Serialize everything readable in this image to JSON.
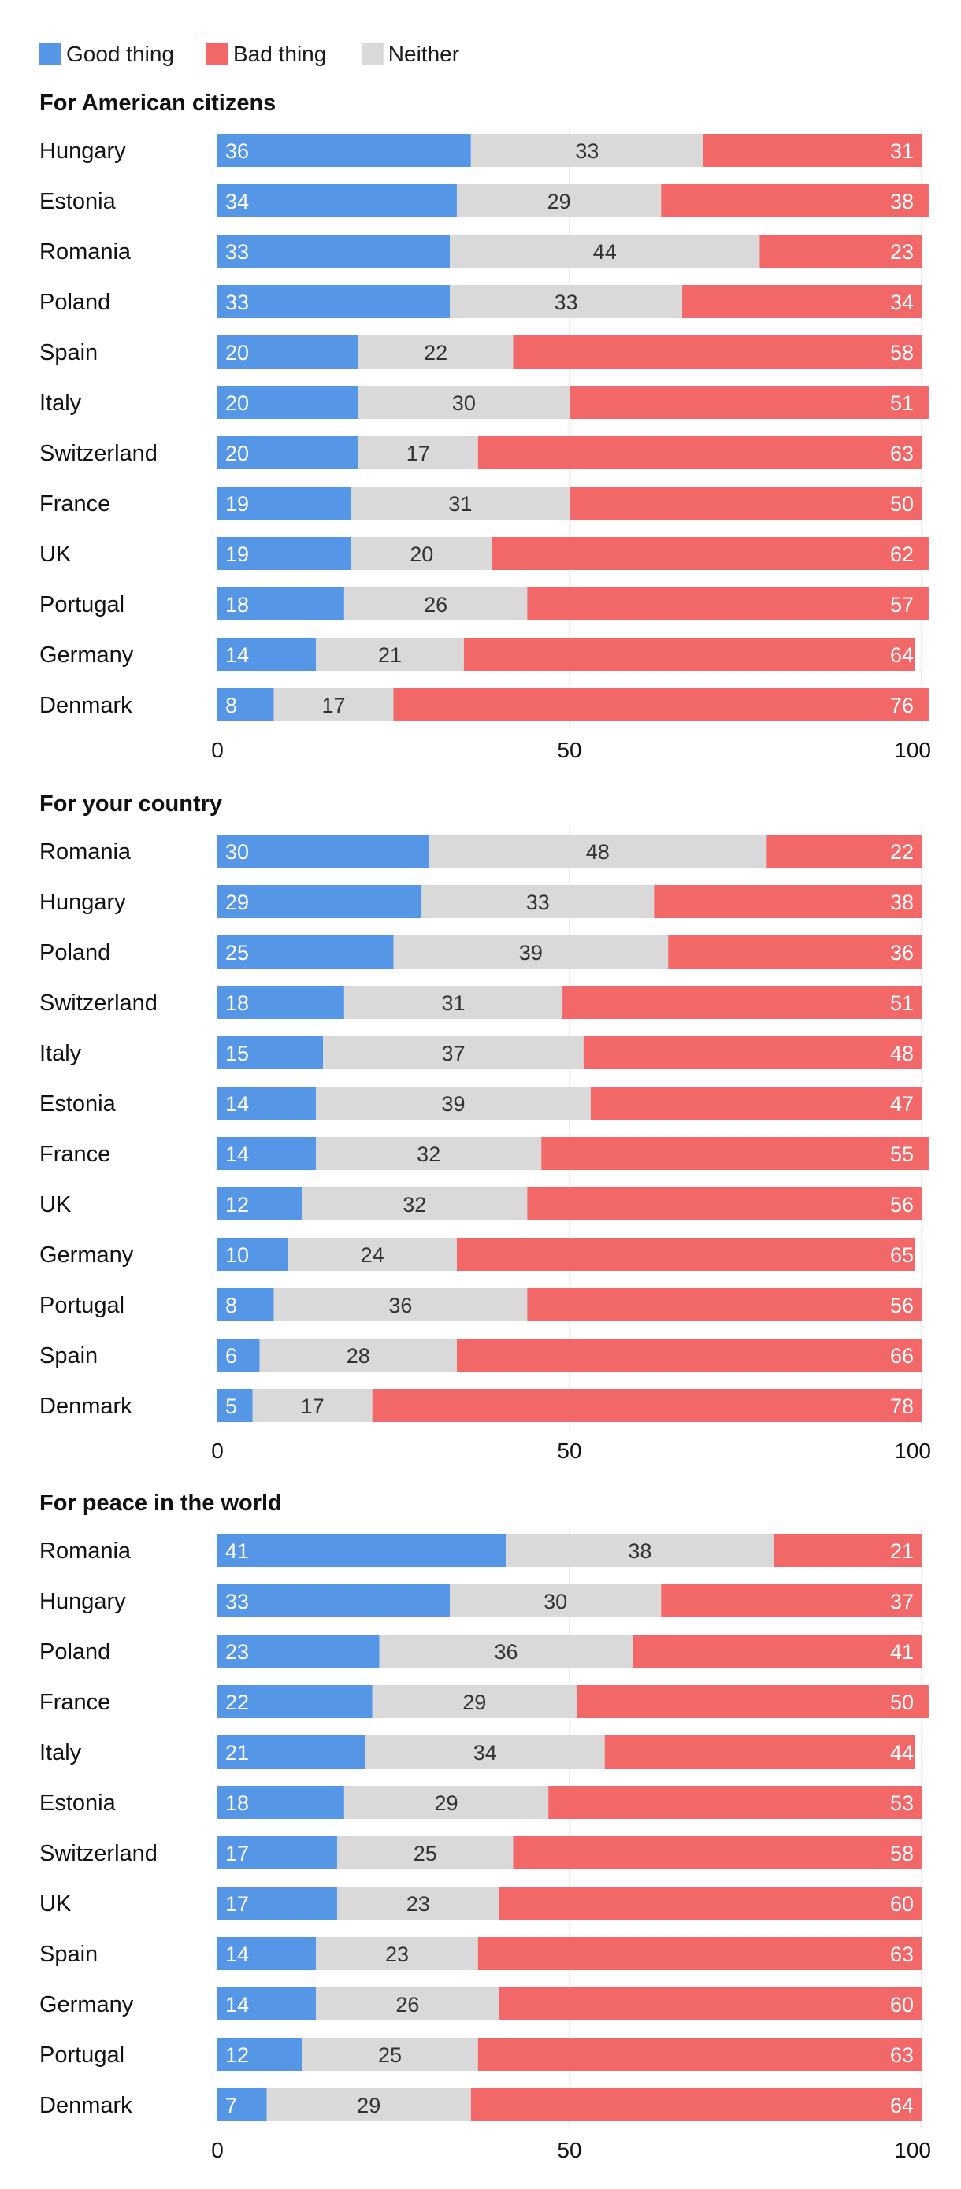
{
  "chart_data": {
    "type": "bar",
    "orientation": "horizontal-stacked-100",
    "legend": [
      {
        "key": "good",
        "name": "Good thing",
        "color": "#5596E6"
      },
      {
        "key": "bad",
        "name": "Bad thing",
        "color": "#F26767"
      },
      {
        "key": "neither",
        "name": "Neither",
        "color": "#D9D9D9"
      }
    ],
    "stack_order": [
      "good",
      "neither",
      "bad"
    ],
    "xlim": [
      0,
      100
    ],
    "xticks": [
      "0",
      "50",
      "100"
    ],
    "panels": [
      {
        "title": "For American citizens",
        "rows": [
          {
            "country": "Hungary",
            "good": 36,
            "neither": 33,
            "bad": 31
          },
          {
            "country": "Estonia",
            "good": 34,
            "neither": 29,
            "bad": 38
          },
          {
            "country": "Romania",
            "good": 33,
            "neither": 44,
            "bad": 23
          },
          {
            "country": "Poland",
            "good": 33,
            "neither": 33,
            "bad": 34
          },
          {
            "country": "Spain",
            "good": 20,
            "neither": 22,
            "bad": 58
          },
          {
            "country": "Italy",
            "good": 20,
            "neither": 30,
            "bad": 51
          },
          {
            "country": "Switzerland",
            "good": 20,
            "neither": 17,
            "bad": 63
          },
          {
            "country": "France",
            "good": 19,
            "neither": 31,
            "bad": 50
          },
          {
            "country": "UK",
            "good": 19,
            "neither": 20,
            "bad": 62
          },
          {
            "country": "Portugal",
            "good": 18,
            "neither": 26,
            "bad": 57
          },
          {
            "country": "Germany",
            "good": 14,
            "neither": 21,
            "bad": 64
          },
          {
            "country": "Denmark",
            "good": 8,
            "neither": 17,
            "bad": 76
          }
        ]
      },
      {
        "title": "For your country",
        "rows": [
          {
            "country": "Romania",
            "good": 30,
            "neither": 48,
            "bad": 22
          },
          {
            "country": "Hungary",
            "good": 29,
            "neither": 33,
            "bad": 38
          },
          {
            "country": "Poland",
            "good": 25,
            "neither": 39,
            "bad": 36
          },
          {
            "country": "Switzerland",
            "good": 18,
            "neither": 31,
            "bad": 51
          },
          {
            "country": "Italy",
            "good": 15,
            "neither": 37,
            "bad": 48
          },
          {
            "country": "Estonia",
            "good": 14,
            "neither": 39,
            "bad": 47
          },
          {
            "country": "France",
            "good": 14,
            "neither": 32,
            "bad": 55
          },
          {
            "country": "UK",
            "good": 12,
            "neither": 32,
            "bad": 56
          },
          {
            "country": "Germany",
            "good": 10,
            "neither": 24,
            "bad": 65
          },
          {
            "country": "Portugal",
            "good": 8,
            "neither": 36,
            "bad": 56
          },
          {
            "country": "Spain",
            "good": 6,
            "neither": 28,
            "bad": 66
          },
          {
            "country": "Denmark",
            "good": 5,
            "neither": 17,
            "bad": 78
          }
        ]
      },
      {
        "title": "For peace in the world",
        "rows": [
          {
            "country": "Romania",
            "good": 41,
            "neither": 38,
            "bad": 21
          },
          {
            "country": "Hungary",
            "good": 33,
            "neither": 30,
            "bad": 37
          },
          {
            "country": "Poland",
            "good": 23,
            "neither": 36,
            "bad": 41
          },
          {
            "country": "France",
            "good": 22,
            "neither": 29,
            "bad": 50
          },
          {
            "country": "Italy",
            "good": 21,
            "neither": 34,
            "bad": 44
          },
          {
            "country": "Estonia",
            "good": 18,
            "neither": 29,
            "bad": 53
          },
          {
            "country": "Switzerland",
            "good": 17,
            "neither": 25,
            "bad": 58
          },
          {
            "country": "UK",
            "good": 17,
            "neither": 23,
            "bad": 60
          },
          {
            "country": "Spain",
            "good": 14,
            "neither": 23,
            "bad": 63
          },
          {
            "country": "Germany",
            "good": 14,
            "neither": 26,
            "bad": 60
          },
          {
            "country": "Portugal",
            "good": 12,
            "neither": 25,
            "bad": 63
          },
          {
            "country": "Denmark",
            "good": 7,
            "neither": 29,
            "bad": 64
          }
        ]
      }
    ]
  }
}
